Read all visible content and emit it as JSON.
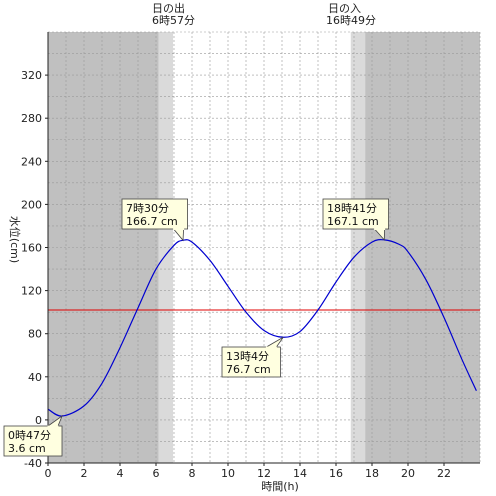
{
  "chart_data": {
    "type": "line",
    "xlabel": "時間(h)",
    "ylabel": "水位(cm)",
    "xlim": [
      0,
      24
    ],
    "ylim": [
      -40,
      360
    ],
    "x_ticks": [
      0,
      2,
      4,
      6,
      8,
      10,
      12,
      14,
      16,
      18,
      20,
      22
    ],
    "y_ticks": [
      -40,
      0,
      40,
      80,
      120,
      160,
      200,
      240,
      280,
      320
    ],
    "reference_line": {
      "value": 102,
      "color": "#e00000"
    },
    "sunrise": {
      "label": "日の出",
      "time_text": "6時57分",
      "hour": 6.95
    },
    "sunset": {
      "label": "日の入",
      "time_text": "16時49分",
      "hour": 16.82
    },
    "series": [
      {
        "color": "#0000d0",
        "x": [
          0,
          0.78,
          2,
          3,
          4,
          5,
          6,
          7,
          7.5,
          8,
          9,
          10,
          11,
          12,
          13.07,
          14,
          15,
          16,
          17,
          18,
          18.68,
          19.5,
          20,
          21,
          22,
          23,
          23.8
        ],
        "y": [
          10,
          3.6,
          13,
          34,
          67,
          104,
          140,
          162,
          166.7,
          165,
          148,
          124,
          100,
          83,
          76.7,
          82,
          102,
          128,
          151,
          165,
          167.1,
          163,
          156,
          130,
          95,
          56,
          27
        ]
      }
    ],
    "annotations": [
      {
        "line1": "0時47分",
        "line2": "3.6 cm",
        "x": 0.78,
        "y": 3.6,
        "placement": "below-left"
      },
      {
        "line1": "7時30分",
        "line2": "166.7 cm",
        "x": 7.5,
        "y": 166.7,
        "placement": "above-left"
      },
      {
        "line1": "13時4分",
        "line2": "76.7 cm",
        "x": 13.07,
        "y": 76.7,
        "placement": "below-left"
      },
      {
        "line1": "18時41分",
        "line2": "167.1 cm",
        "x": 18.68,
        "y": 167.1,
        "placement": "above-left"
      }
    ],
    "colors": {
      "night": "#c0c0c0",
      "twilight": "#dadada",
      "day": "#ffffff",
      "grid": "#999999",
      "annotation_bg": "#ffffe0"
    }
  }
}
